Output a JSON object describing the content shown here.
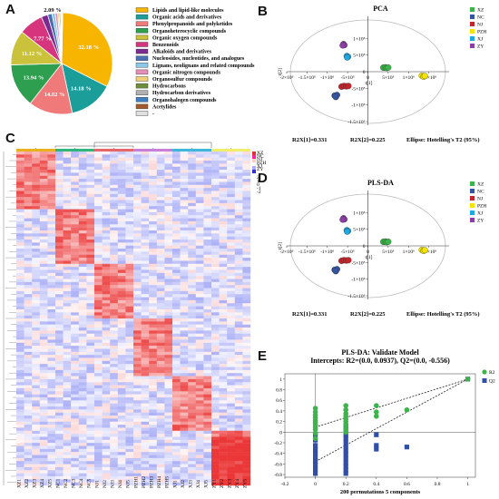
{
  "panels": {
    "A": "A",
    "B": "B",
    "C": "C",
    "D": "D",
    "E": "E"
  },
  "chart_data": [
    {
      "type": "pie",
      "panel": "A",
      "slices": [
        {
          "label": "Lipids and lipid-like molecules",
          "value": 32.18,
          "color": "#F7B500"
        },
        {
          "label": "Organic acids and derivatives",
          "value": 14.18,
          "color": "#1B9E9A"
        },
        {
          "label": "Phenylpropanoids and polyketides",
          "value": 14.02,
          "color": "#F07A7A"
        },
        {
          "label": "Organoheterocyclic compounds",
          "value": 13.94,
          "color": "#2E9E4F"
        },
        {
          "label": "Organic oxygen compounds",
          "value": 11.12,
          "color": "#C9C23A"
        },
        {
          "label": "Benzenoids",
          "value": 7.77,
          "color": "#D6357E"
        },
        {
          "label": "Alkaloids and derivatives",
          "value": 2.09,
          "color": "#7B2A8E"
        },
        {
          "label": "Nucleosides, nucleotides, and analogues",
          "value": 1.4,
          "color": "#4A6FB5"
        },
        {
          "label": "Lignans, neolignans and related compounds",
          "value": 1.0,
          "color": "#8BC7E8"
        },
        {
          "label": "Organic nitrogen compounds",
          "value": 0.8,
          "color": "#E58FB8"
        },
        {
          "label": "Organosulfur compounds",
          "value": 0.5,
          "color": "#F2D079"
        },
        {
          "label": "Hydrocarbons",
          "value": 0.4,
          "color": "#6D8F3A"
        },
        {
          "label": "Hydrocarbon derivatives",
          "value": 0.3,
          "color": "#B0B0B0"
        },
        {
          "label": "Organohalogen compounds",
          "value": 0.2,
          "color": "#3F7FBF"
        },
        {
          "label": "Acetylides",
          "value": 0.1,
          "color": "#A05A2C"
        },
        {
          "label": "-",
          "value": 0.1,
          "color": "#E0E0E0"
        }
      ],
      "labels_shown": [
        "32.18 %",
        "14.18 %",
        "14.02 %",
        "13.94 %",
        "11.12 %",
        "7.77 %",
        "2.09 %"
      ]
    },
    {
      "type": "scatter",
      "panel": "B",
      "title": "PCA",
      "xlabel": "t[1]",
      "ylabel": "t[2]",
      "xticks": [
        "-2×10⁶",
        "-1.5×10⁶",
        "-1×10⁶",
        "-5×10⁵",
        "0",
        "5×10⁵",
        "1×10⁶",
        "1.5×10⁶"
      ],
      "yticks": [
        "1×10⁶",
        "5×10⁵",
        "0",
        "-5×10⁵",
        "-1×10⁶",
        "-1.5×10⁶"
      ],
      "xlim": [
        -2000000,
        2000000
      ],
      "ylim": [
        -1500000,
        1500000
      ],
      "footer": [
        "R2X[1]=0.331",
        "R2X[2]=0.225",
        "Ellipse: Hotelling's T2 (95%)"
      ],
      "series": [
        {
          "name": "XZ",
          "color": "#3CB44B",
          "points": [
            [
              380000,
              120000
            ],
            [
              420000,
              130000
            ],
            [
              460000,
              115000
            ],
            [
              500000,
              125000
            ]
          ]
        },
        {
          "name": "NC",
          "color": "#3455A4",
          "points": [
            [
              -820000,
              -720000
            ],
            [
              -790000,
              -760000
            ],
            [
              -760000,
              -700000
            ],
            [
              -800000,
              -740000
            ]
          ]
        },
        {
          "name": "NJ",
          "color": "#C1272D",
          "points": [
            [
              -650000,
              -450000
            ],
            [
              -590000,
              -430000
            ],
            [
              -530000,
              -440000
            ],
            [
              -480000,
              -430000
            ]
          ]
        },
        {
          "name": "PZH",
          "color": "#F5E400",
          "points": [
            [
              1330000,
              -120000
            ],
            [
              1370000,
              -150000
            ],
            [
              1400000,
              -130000
            ]
          ]
        },
        {
          "name": "XJ",
          "color": "#1EA7E1",
          "points": [
            [
              -520000,
              470000
            ],
            [
              -490000,
              450000
            ],
            [
              -510000,
              430000
            ]
          ]
        },
        {
          "name": "ZY",
          "color": "#8E3CA8",
          "points": [
            [
              -600000,
              830000
            ],
            [
              -580000,
              800000
            ],
            [
              -620000,
              790000
            ]
          ]
        }
      ]
    },
    {
      "type": "heatmap",
      "panel": "C",
      "columns": [
        "XZ1",
        "XZ2",
        "XZ3",
        "XZ4",
        "XZ5",
        "NC1",
        "NC2",
        "NC3",
        "NC4",
        "NC5",
        "NJ1",
        "NJ2",
        "NJ3",
        "NJ4",
        "NJ5",
        "PZH1",
        "PZH2",
        "PZH3",
        "PZH4",
        "PZH5",
        "XJ1",
        "XJ2",
        "XJ3",
        "XJ4",
        "XJ5",
        "ZY1",
        "ZY2",
        "ZY3",
        "ZY4",
        "ZY5"
      ],
      "group_colors": [
        "#E8B21E",
        "#2EB67D",
        "#E8656A",
        "#C77FD8",
        "#3EB7D8",
        "#F2EC6B"
      ],
      "legend": {
        "groups": [
          "XZ",
          "NC",
          "NJ",
          "PZH",
          "XJ",
          "ZY"
        ],
        "scale": [
          "2",
          "1",
          "0",
          "-1",
          "-2"
        ]
      }
    },
    {
      "type": "scatter",
      "panel": "D",
      "title": "PLS-DA",
      "xlabel": "t[1]",
      "ylabel": "t[2]",
      "xticks": [
        "-2×10⁶",
        "-1.5×10⁶",
        "-1×10⁶",
        "-5×10⁵",
        "0",
        "5×10⁵",
        "1×10⁶",
        "1.5×10⁶"
      ],
      "yticks": [
        "1×10⁶",
        "5×10⁵",
        "0",
        "-5×10⁵",
        "-1×10⁶",
        "-1.5×10⁶"
      ],
      "xlim": [
        -2000000,
        2000000
      ],
      "ylim": [
        -1500000,
        1500000
      ],
      "footer": [
        "R2X[1]=0.331",
        "R2X[2]=0.225",
        "Ellipse: Hotelling's T2 (95%)"
      ],
      "series": [
        {
          "name": "XZ",
          "color": "#3CB44B",
          "points": [
            [
              380000,
              120000
            ],
            [
              420000,
              130000
            ],
            [
              460000,
              115000
            ],
            [
              500000,
              125000
            ]
          ]
        },
        {
          "name": "NC",
          "color": "#3455A4",
          "points": [
            [
              -820000,
              -720000
            ],
            [
              -790000,
              -760000
            ],
            [
              -760000,
              -700000
            ],
            [
              -800000,
              -740000
            ]
          ]
        },
        {
          "name": "NJ",
          "color": "#C1272D",
          "points": [
            [
              -650000,
              -450000
            ],
            [
              -590000,
              -430000
            ],
            [
              -530000,
              -440000
            ],
            [
              -480000,
              -430000
            ]
          ]
        },
        {
          "name": "PZH",
          "color": "#F5E400",
          "points": [
            [
              1330000,
              -120000
            ],
            [
              1370000,
              -150000
            ],
            [
              1400000,
              -130000
            ]
          ]
        },
        {
          "name": "XJ",
          "color": "#1EA7E1",
          "points": [
            [
              -520000,
              470000
            ],
            [
              -490000,
              450000
            ],
            [
              -510000,
              430000
            ]
          ]
        },
        {
          "name": "ZY",
          "color": "#8E3CA8",
          "points": [
            [
              -600000,
              830000
            ],
            [
              -580000,
              800000
            ],
            [
              -620000,
              790000
            ]
          ]
        }
      ]
    },
    {
      "type": "scatter",
      "panel": "E",
      "title": "PLS-DA: Validate Model",
      "subtitle": "Intercepts: R2=(0.0, 0.0937), Q2=(0.0, -0.556)",
      "xlabel": "200 permutations 5 components",
      "xticks": [
        "-0.2",
        "0",
        "0.2",
        "0.4",
        "0.6",
        "0.8",
        "1"
      ],
      "yticks": [
        "1",
        "0.8",
        "0.6",
        "0.4",
        "0.2",
        "0",
        "-0.2",
        "-0.4",
        "-0.6",
        "-0.8"
      ],
      "xlim": [
        -0.2,
        1.05
      ],
      "ylim": [
        -0.85,
        1.1
      ],
      "series": [
        {
          "name": "R2",
          "color": "#3CB44B",
          "points": [
            [
              0,
              0.45
            ],
            [
              0,
              0.38
            ],
            [
              0,
              0.32
            ],
            [
              0,
              0.27
            ],
            [
              0,
              0.22
            ],
            [
              0,
              0.18
            ],
            [
              0,
              0.14
            ],
            [
              0,
              0.09
            ],
            [
              0,
              0.05
            ],
            [
              0,
              -0.02
            ],
            [
              0,
              -0.12
            ],
            [
              0.2,
              0.5
            ],
            [
              0.2,
              0.42
            ],
            [
              0.2,
              0.35
            ],
            [
              0.2,
              0.3
            ],
            [
              0.2,
              0.25
            ],
            [
              0.2,
              0.2
            ],
            [
              0.2,
              0.15
            ],
            [
              0.2,
              0.1
            ],
            [
              0.2,
              0.05
            ],
            [
              0.2,
              0.0
            ],
            [
              0.4,
              0.5
            ],
            [
              0.4,
              0.38
            ],
            [
              0.4,
              0.3
            ],
            [
              0.6,
              0.42
            ],
            [
              1,
              1
            ]
          ]
        },
        {
          "name": "Q2",
          "color": "#2F4FA8",
          "points": [
            [
              0,
              -0.05
            ],
            [
              0,
              -0.15
            ],
            [
              0,
              -0.25
            ],
            [
              0,
              -0.33
            ],
            [
              0,
              -0.4
            ],
            [
              0,
              -0.48
            ],
            [
              0,
              -0.55
            ],
            [
              0,
              -0.62
            ],
            [
              0,
              -0.7
            ],
            [
              0,
              -0.78
            ],
            [
              0.2,
              0.12
            ],
            [
              0.2,
              0.05
            ],
            [
              0.2,
              -0.05
            ],
            [
              0.2,
              -0.12
            ],
            [
              0.2,
              -0.2
            ],
            [
              0.2,
              -0.28
            ],
            [
              0.2,
              -0.35
            ],
            [
              0.2,
              -0.42
            ],
            [
              0.2,
              -0.5
            ],
            [
              0.2,
              -0.58
            ],
            [
              0.2,
              -0.65
            ],
            [
              0.2,
              -0.72
            ],
            [
              0.2,
              -0.78
            ],
            [
              0.4,
              -0.05
            ],
            [
              0.4,
              -0.25
            ],
            [
              0.4,
              -0.32
            ],
            [
              0.6,
              -0.28
            ],
            [
              1,
              1
            ]
          ]
        }
      ]
    }
  ]
}
